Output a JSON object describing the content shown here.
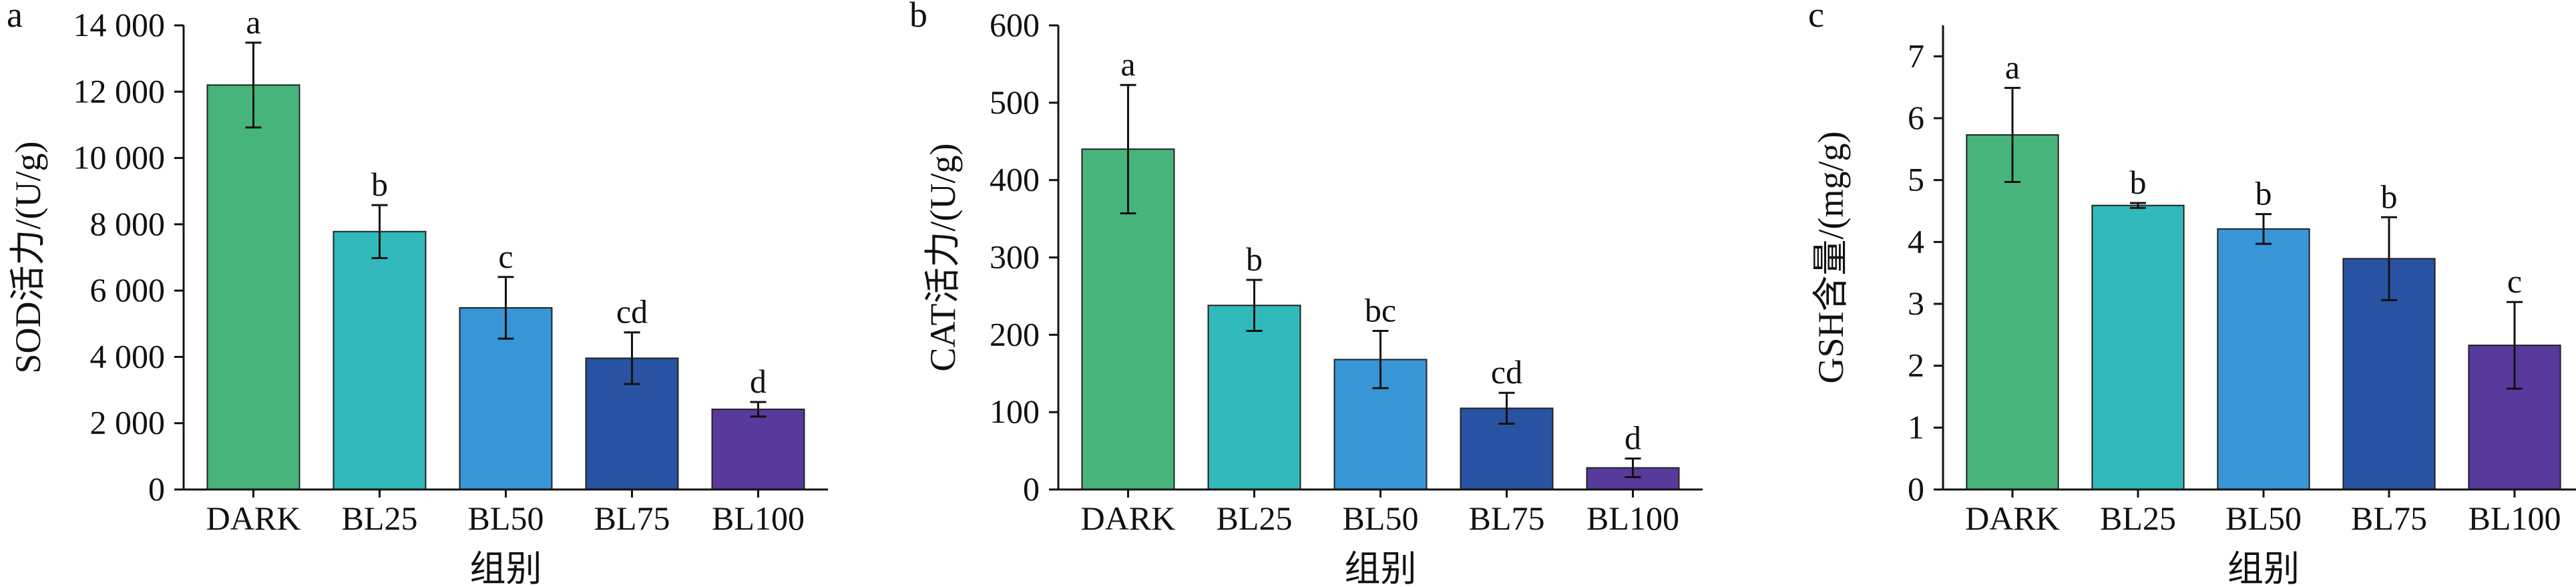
{
  "chart_data": [
    {
      "panel": "a",
      "type": "bar",
      "categories": [
        "DARK",
        "BL25",
        "BL50",
        "BL75",
        "BL100"
      ],
      "values": [
        12200,
        7780,
        5480,
        3960,
        2420
      ],
      "errors": [
        1280,
        800,
        930,
        780,
        220
      ],
      "significance": [
        "a",
        "b",
        "c",
        "cd",
        "d"
      ],
      "xlabel": "组别",
      "ylabel": "SOD活力/(U/g)",
      "ylim": [
        0,
        14000
      ],
      "yticks": [
        0,
        2000,
        4000,
        6000,
        8000,
        10000,
        12000,
        14000
      ],
      "ytick_labels": [
        "0",
        "2 000",
        "4 000",
        "6 000",
        "8 000",
        "10 000",
        "12 000",
        "14 000"
      ]
    },
    {
      "panel": "b",
      "type": "bar",
      "categories": [
        "DARK",
        "BL25",
        "BL50",
        "BL75",
        "BL100"
      ],
      "values": [
        440,
        238,
        168,
        105,
        28
      ],
      "errors": [
        83,
        33,
        37,
        20,
        12
      ],
      "significance": [
        "a",
        "b",
        "bc",
        "cd",
        "d"
      ],
      "xlabel": "组别",
      "ylabel": "CAT活力/(U/g)",
      "ylim": [
        0,
        600
      ],
      "yticks": [
        0,
        100,
        200,
        300,
        400,
        500,
        600
      ],
      "ytick_labels": [
        "0",
        "100",
        "200",
        "300",
        "400",
        "500",
        "600"
      ]
    },
    {
      "panel": "c",
      "type": "bar",
      "categories": [
        "DARK",
        "BL25",
        "BL50",
        "BL75",
        "BL100"
      ],
      "values": [
        5.73,
        4.59,
        4.21,
        3.73,
        2.33
      ],
      "errors": [
        0.76,
        0.04,
        0.24,
        0.67,
        0.7
      ],
      "significance": [
        "a",
        "b",
        "b",
        "b",
        "c"
      ],
      "xlabel": "组别",
      "ylabel": "GSH含量/(mg/g)",
      "ylim": [
        0,
        7.5
      ],
      "yticks": [
        0,
        1,
        2,
        3,
        4,
        5,
        6,
        7
      ],
      "ytick_labels": [
        "0",
        "1",
        "2",
        "3",
        "4",
        "5",
        "6",
        "7"
      ]
    }
  ],
  "colors": {
    "DARK": "#47b57b",
    "BL25": "#31b8ba",
    "BL50": "#3896d6",
    "BL75": "#2a52a2",
    "BL100": "#573a9b",
    "axis": "#111111"
  }
}
